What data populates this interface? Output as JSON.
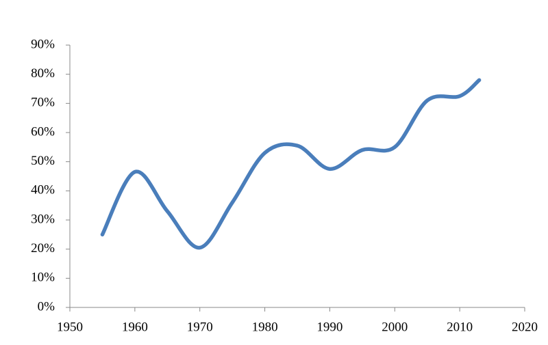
{
  "chart_data": {
    "type": "line",
    "x": [
      1955,
      1960,
      1965,
      1970,
      1975,
      1980,
      1985,
      1990,
      1995,
      2000,
      2005,
      2010,
      2013
    ],
    "series": [
      {
        "color": "#4a7ebb",
        "values": [
          25,
          46.5,
          33,
          20.5,
          36,
          53,
          55.5,
          47.5,
          54,
          55,
          71,
          72.5,
          78
        ]
      }
    ],
    "xlim": [
      1950,
      2020
    ],
    "xticks": [
      1950,
      1960,
      1970,
      1980,
      1990,
      2000,
      2010,
      2020
    ],
    "ylim": [
      0,
      90
    ],
    "yticks": [
      {
        "value": 0,
        "label": "0%"
      },
      {
        "value": 10,
        "label": "10%"
      },
      {
        "value": 20,
        "label": "20%"
      },
      {
        "value": 30,
        "label": "30%"
      },
      {
        "value": 40,
        "label": "40%"
      },
      {
        "value": 50,
        "label": "50%"
      },
      {
        "value": 60,
        "label": "60%"
      },
      {
        "value": 70,
        "label": "70%"
      },
      {
        "value": 80,
        "label": "80%"
      },
      {
        "value": 90,
        "label": "90%"
      }
    ],
    "smooth": true
  }
}
